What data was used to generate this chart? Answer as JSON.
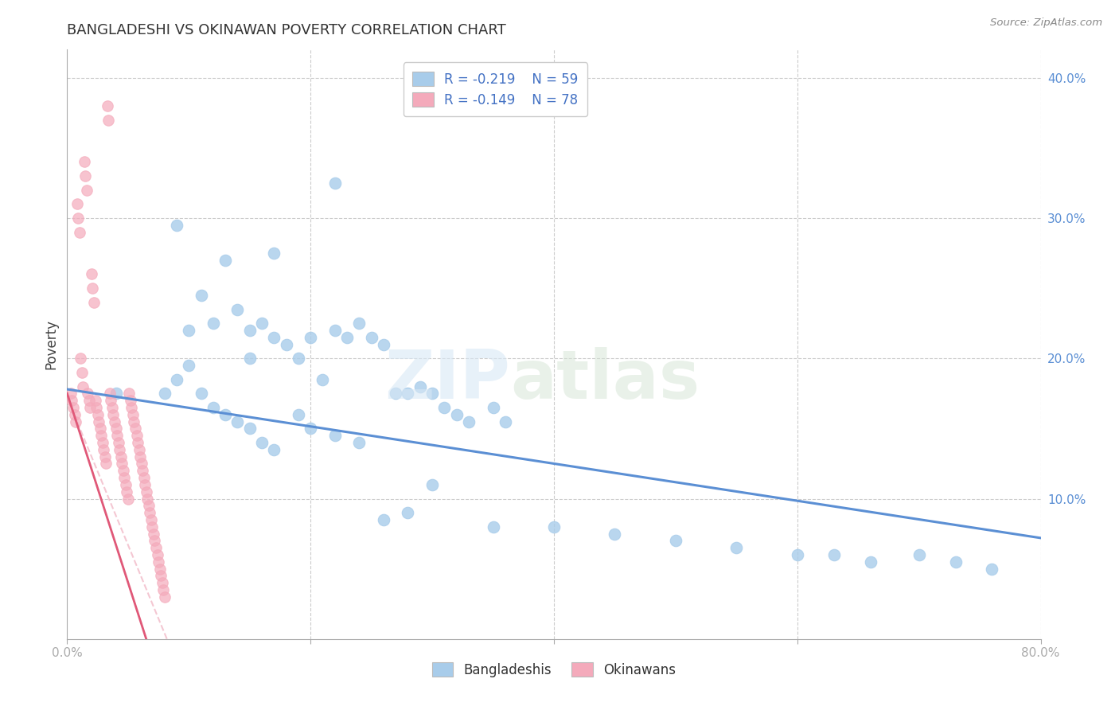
{
  "title": "BANGLADESHI VS OKINAWAN POVERTY CORRELATION CHART",
  "source": "Source: ZipAtlas.com",
  "ylabel": "Poverty",
  "xlim": [
    0.0,
    0.8
  ],
  "ylim": [
    0.0,
    0.42
  ],
  "yticks": [
    0.1,
    0.2,
    0.3,
    0.4
  ],
  "ytick_labels": [
    "10.0%",
    "20.0%",
    "30.0%",
    "40.0%"
  ],
  "xticks": [
    0.0,
    0.2,
    0.4,
    0.6,
    0.8
  ],
  "xtick_labels": [
    "0.0%",
    "",
    "",
    "",
    "80.0%"
  ],
  "legend_R_blue": "-0.219",
  "legend_N_blue": "59",
  "legend_R_pink": "-0.149",
  "legend_N_pink": "78",
  "blue_color": "#A8CCEA",
  "pink_color": "#F4AABB",
  "blue_line_color": "#5B8FD4",
  "pink_line_color": "#E05878",
  "pink_dash_color": "#F0B0C0",
  "watermark_zip": "ZIP",
  "watermark_atlas": "atlas",
  "blue_scatter_x": [
    0.04,
    0.09,
    0.1,
    0.11,
    0.12,
    0.13,
    0.14,
    0.15,
    0.15,
    0.16,
    0.17,
    0.17,
    0.18,
    0.19,
    0.2,
    0.21,
    0.22,
    0.23,
    0.24,
    0.25,
    0.26,
    0.27,
    0.28,
    0.29,
    0.3,
    0.31,
    0.32,
    0.33,
    0.35,
    0.36,
    0.08,
    0.09,
    0.1,
    0.11,
    0.12,
    0.13,
    0.14,
    0.15,
    0.16,
    0.17,
    0.19,
    0.2,
    0.22,
    0.24,
    0.26,
    0.28,
    0.3,
    0.35,
    0.4,
    0.45,
    0.5,
    0.55,
    0.6,
    0.63,
    0.66,
    0.7,
    0.73,
    0.76,
    0.22
  ],
  "blue_scatter_y": [
    0.175,
    0.295,
    0.22,
    0.245,
    0.225,
    0.27,
    0.235,
    0.22,
    0.2,
    0.225,
    0.215,
    0.275,
    0.21,
    0.2,
    0.215,
    0.185,
    0.22,
    0.215,
    0.225,
    0.215,
    0.21,
    0.175,
    0.175,
    0.18,
    0.175,
    0.165,
    0.16,
    0.155,
    0.165,
    0.155,
    0.175,
    0.185,
    0.195,
    0.175,
    0.165,
    0.16,
    0.155,
    0.15,
    0.14,
    0.135,
    0.16,
    0.15,
    0.145,
    0.14,
    0.085,
    0.09,
    0.11,
    0.08,
    0.08,
    0.075,
    0.07,
    0.065,
    0.06,
    0.06,
    0.055,
    0.06,
    0.055,
    0.05,
    0.325
  ],
  "pink_scatter_x": [
    0.003,
    0.004,
    0.005,
    0.006,
    0.007,
    0.008,
    0.009,
    0.01,
    0.011,
    0.012,
    0.013,
    0.014,
    0.015,
    0.016,
    0.017,
    0.018,
    0.019,
    0.02,
    0.021,
    0.022,
    0.023,
    0.024,
    0.025,
    0.026,
    0.027,
    0.028,
    0.029,
    0.03,
    0.031,
    0.032,
    0.033,
    0.034,
    0.035,
    0.036,
    0.037,
    0.038,
    0.039,
    0.04,
    0.041,
    0.042,
    0.043,
    0.044,
    0.045,
    0.046,
    0.047,
    0.048,
    0.049,
    0.05,
    0.051,
    0.052,
    0.053,
    0.054,
    0.055,
    0.056,
    0.057,
    0.058,
    0.059,
    0.06,
    0.061,
    0.062,
    0.063,
    0.064,
    0.065,
    0.066,
    0.067,
    0.068,
    0.069,
    0.07,
    0.071,
    0.072,
    0.073,
    0.074,
    0.075,
    0.076,
    0.077,
    0.078,
    0.079,
    0.08
  ],
  "pink_scatter_y": [
    0.175,
    0.17,
    0.165,
    0.16,
    0.155,
    0.31,
    0.3,
    0.29,
    0.2,
    0.19,
    0.18,
    0.34,
    0.33,
    0.32,
    0.175,
    0.17,
    0.165,
    0.26,
    0.25,
    0.24,
    0.17,
    0.165,
    0.16,
    0.155,
    0.15,
    0.145,
    0.14,
    0.135,
    0.13,
    0.125,
    0.38,
    0.37,
    0.175,
    0.17,
    0.165,
    0.16,
    0.155,
    0.15,
    0.145,
    0.14,
    0.135,
    0.13,
    0.125,
    0.12,
    0.115,
    0.11,
    0.105,
    0.1,
    0.175,
    0.17,
    0.165,
    0.16,
    0.155,
    0.15,
    0.145,
    0.14,
    0.135,
    0.13,
    0.125,
    0.12,
    0.115,
    0.11,
    0.105,
    0.1,
    0.095,
    0.09,
    0.085,
    0.08,
    0.075,
    0.07,
    0.065,
    0.06,
    0.055,
    0.05,
    0.045,
    0.04,
    0.035,
    0.03
  ],
  "blue_regline_x": [
    0.0,
    0.8
  ],
  "blue_regline_y": [
    0.178,
    0.072
  ],
  "pink_regline_x": [
    0.0,
    0.065
  ],
  "pink_regline_y": [
    0.175,
    0.0
  ],
  "pink_dashline_x": [
    0.0,
    0.082
  ],
  "pink_dashline_y": [
    0.172,
    0.0
  ]
}
